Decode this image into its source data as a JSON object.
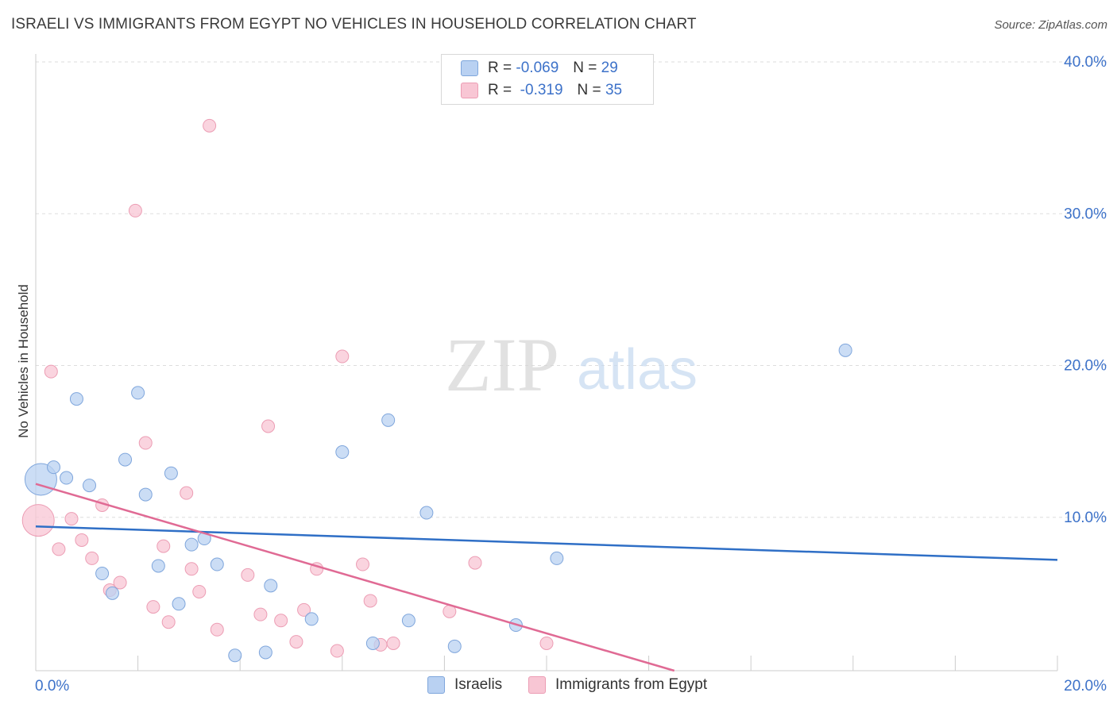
{
  "title": "ISRAELI VS IMMIGRANTS FROM EGYPT NO VEHICLES IN HOUSEHOLD CORRELATION CHART",
  "source": "Source: ZipAtlas.com",
  "watermark": {
    "zip": "ZIP",
    "atlas": "atlas"
  },
  "legend": {
    "israelis": {
      "r_label": "R =",
      "r_value": "-0.069",
      "n_label": "N =",
      "n_value": "29"
    },
    "egypt": {
      "r_label": "R =",
      "r_value": "-0.319",
      "n_label": "N =",
      "n_value": "35"
    }
  },
  "colors": {
    "blue_fill": "#b9d1f2",
    "blue_stroke": "#7fa6dc",
    "blue_line": "#2f6fc6",
    "pink_fill": "#f8c6d4",
    "pink_stroke": "#ec9db4",
    "pink_line": "#e06a94",
    "tick_label": "#3d72c9",
    "grid": "#dddddd"
  },
  "chart_data": {
    "type": "scatter",
    "title": "ISRAELI VS IMMIGRANTS FROM EGYPT NO VEHICLES IN HOUSEHOLD CORRELATION CHART",
    "xlabel": "",
    "ylabel": "No Vehicles in Household",
    "xlim": [
      0,
      20
    ],
    "ylim": [
      0,
      40
    ],
    "x_tick_labels": [
      "0.0%",
      "20.0%"
    ],
    "y_ticks": [
      10,
      20,
      30,
      40
    ],
    "y_tick_labels": [
      "10.0%",
      "20.0%",
      "30.0%",
      "40.0%"
    ],
    "grid": "horizontal-dashed",
    "legend_position": "top-center",
    "series": [
      {
        "name": "Israelis",
        "r": -0.069,
        "n": 29,
        "trend": [
          [
            0,
            9.4
          ],
          [
            20,
            7.3
          ]
        ],
        "points": [
          {
            "x": 0.1,
            "y": 12.5,
            "big": true
          },
          {
            "x": 0.35,
            "y": 13.3
          },
          {
            "x": 0.6,
            "y": 12.6
          },
          {
            "x": 0.8,
            "y": 17.8
          },
          {
            "x": 1.05,
            "y": 12.1
          },
          {
            "x": 1.3,
            "y": 6.3
          },
          {
            "x": 1.5,
            "y": 5.0
          },
          {
            "x": 1.75,
            "y": 13.8
          },
          {
            "x": 2.0,
            "y": 18.2
          },
          {
            "x": 2.15,
            "y": 11.5
          },
          {
            "x": 2.4,
            "y": 6.8
          },
          {
            "x": 2.65,
            "y": 12.9
          },
          {
            "x": 2.8,
            "y": 4.3
          },
          {
            "x": 3.05,
            "y": 8.2
          },
          {
            "x": 3.3,
            "y": 8.6
          },
          {
            "x": 3.55,
            "y": 6.9
          },
          {
            "x": 3.9,
            "y": 0.9
          },
          {
            "x": 4.5,
            "y": 1.1
          },
          {
            "x": 4.6,
            "y": 5.5
          },
          {
            "x": 5.4,
            "y": 3.3
          },
          {
            "x": 6.0,
            "y": 14.3
          },
          {
            "x": 6.6,
            "y": 1.7
          },
          {
            "x": 6.9,
            "y": 16.4
          },
          {
            "x": 7.3,
            "y": 3.2
          },
          {
            "x": 7.65,
            "y": 10.3
          },
          {
            "x": 8.2,
            "y": 1.5
          },
          {
            "x": 9.4,
            "y": 2.9
          },
          {
            "x": 10.2,
            "y": 7.3
          },
          {
            "x": 15.85,
            "y": 21.0
          }
        ]
      },
      {
        "name": "Immigrants from Egypt",
        "r": -0.319,
        "n": 35,
        "trend": [
          [
            0,
            12.2
          ],
          [
            12.5,
            0
          ]
        ],
        "points": [
          {
            "x": 0.05,
            "y": 9.8,
            "big": true
          },
          {
            "x": 0.3,
            "y": 19.6
          },
          {
            "x": 0.45,
            "y": 7.9
          },
          {
            "x": 0.7,
            "y": 9.9
          },
          {
            "x": 0.9,
            "y": 8.5
          },
          {
            "x": 1.1,
            "y": 7.3
          },
          {
            "x": 1.3,
            "y": 10.8
          },
          {
            "x": 1.45,
            "y": 5.2
          },
          {
            "x": 1.65,
            "y": 5.7
          },
          {
            "x": 1.95,
            "y": 30.2
          },
          {
            "x": 2.15,
            "y": 14.9
          },
          {
            "x": 2.3,
            "y": 4.1
          },
          {
            "x": 2.5,
            "y": 8.1
          },
          {
            "x": 2.6,
            "y": 3.1
          },
          {
            "x": 2.95,
            "y": 11.6
          },
          {
            "x": 3.05,
            "y": 6.6
          },
          {
            "x": 3.2,
            "y": 5.1
          },
          {
            "x": 3.4,
            "y": 35.8
          },
          {
            "x": 3.55,
            "y": 2.6
          },
          {
            "x": 4.15,
            "y": 6.2
          },
          {
            "x": 4.4,
            "y": 3.6
          },
          {
            "x": 4.55,
            "y": 16.0
          },
          {
            "x": 4.8,
            "y": 3.2
          },
          {
            "x": 5.1,
            "y": 1.8
          },
          {
            "x": 5.25,
            "y": 3.9
          },
          {
            "x": 5.5,
            "y": 6.6
          },
          {
            "x": 5.9,
            "y": 1.2
          },
          {
            "x": 6.0,
            "y": 20.6
          },
          {
            "x": 6.4,
            "y": 6.9
          },
          {
            "x": 6.55,
            "y": 4.5
          },
          {
            "x": 6.75,
            "y": 1.6
          },
          {
            "x": 7.0,
            "y": 1.7
          },
          {
            "x": 8.1,
            "y": 3.8
          },
          {
            "x": 8.6,
            "y": 7.0
          },
          {
            "x": 10.0,
            "y": 1.7
          }
        ]
      }
    ]
  }
}
